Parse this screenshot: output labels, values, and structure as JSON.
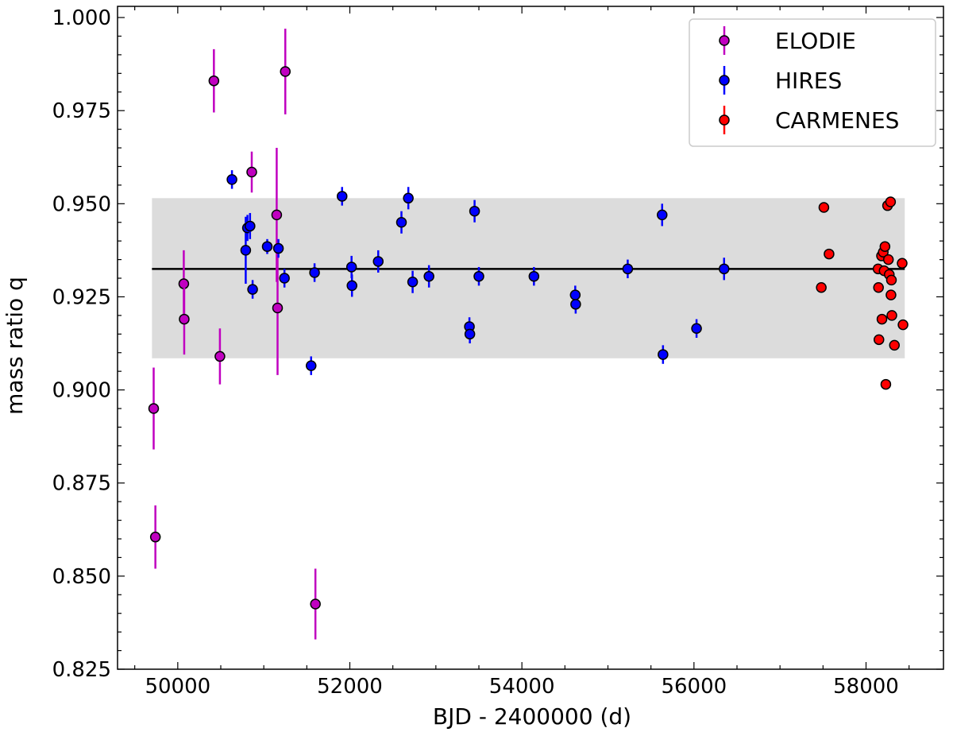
{
  "chart_data": {
    "type": "scatter",
    "xlabel": "BJD - 2400000 (d)",
    "ylabel": "mass ratio q",
    "xlim": [
      49300,
      58900
    ],
    "ylim": [
      0.825,
      1.003
    ],
    "x_ticks": [
      50000,
      52000,
      54000,
      56000,
      58000
    ],
    "y_ticks": [
      0.825,
      0.85,
      0.875,
      0.9,
      0.925,
      0.95,
      0.975,
      1.0
    ],
    "x_tick_labels": [
      "50000",
      "52000",
      "54000",
      "56000",
      "58000"
    ],
    "y_tick_labels": [
      "0.825",
      "0.850",
      "0.875",
      "0.900",
      "0.925",
      "0.950",
      "0.975",
      "1.000"
    ],
    "grid": false,
    "legend_position": "top-right",
    "mean_line": {
      "y": 0.9325,
      "x_range": [
        49700,
        58450
      ]
    },
    "band": {
      "y_range": [
        0.9085,
        0.9515
      ],
      "x_range": [
        49700,
        58450
      ]
    },
    "series": [
      {
        "name": "ELODIE",
        "color": "#c000c0",
        "points": [
          {
            "x": 49720,
            "y": 0.895,
            "err": 0.011
          },
          {
            "x": 49740,
            "y": 0.8605,
            "err": 0.0085
          },
          {
            "x": 50070,
            "y": 0.9285,
            "err": 0.009
          },
          {
            "x": 50075,
            "y": 0.919,
            "err": 0.0095
          },
          {
            "x": 50420,
            "y": 0.983,
            "err": 0.0085
          },
          {
            "x": 50490,
            "y": 0.909,
            "err": 0.0075
          },
          {
            "x": 50860,
            "y": 0.9585,
            "err": 0.0055
          },
          {
            "x": 51150,
            "y": 0.947,
            "err": 0.018
          },
          {
            "x": 51160,
            "y": 0.922,
            "err": 0.018
          },
          {
            "x": 51250,
            "y": 0.9855,
            "err": 0.0115
          },
          {
            "x": 51600,
            "y": 0.8425,
            "err": 0.0095
          }
        ]
      },
      {
        "name": "HIRES",
        "color": "#0000ff",
        "points": [
          {
            "x": 50630,
            "y": 0.9565,
            "err": 0.0025
          },
          {
            "x": 50790,
            "y": 0.9375,
            "err": 0.009
          },
          {
            "x": 50810,
            "y": 0.9435,
            "err": 0.0035
          },
          {
            "x": 50840,
            "y": 0.944,
            "err": 0.0035
          },
          {
            "x": 50870,
            "y": 0.927,
            "err": 0.0025
          },
          {
            "x": 51040,
            "y": 0.9385,
            "err": 0.002
          },
          {
            "x": 51170,
            "y": 0.938,
            "err": 0.0025
          },
          {
            "x": 51240,
            "y": 0.93,
            "err": 0.0025
          },
          {
            "x": 51550,
            "y": 0.9065,
            "err": 0.0025
          },
          {
            "x": 51590,
            "y": 0.9315,
            "err": 0.0025
          },
          {
            "x": 51910,
            "y": 0.952,
            "err": 0.0025
          },
          {
            "x": 52020,
            "y": 0.933,
            "err": 0.003
          },
          {
            "x": 52025,
            "y": 0.928,
            "err": 0.003
          },
          {
            "x": 52330,
            "y": 0.9345,
            "err": 0.003
          },
          {
            "x": 52600,
            "y": 0.945,
            "err": 0.003
          },
          {
            "x": 52680,
            "y": 0.9515,
            "err": 0.003
          },
          {
            "x": 52730,
            "y": 0.929,
            "err": 0.003
          },
          {
            "x": 52920,
            "y": 0.9305,
            "err": 0.003
          },
          {
            "x": 53390,
            "y": 0.917,
            "err": 0.0025
          },
          {
            "x": 53395,
            "y": 0.915,
            "err": 0.0025
          },
          {
            "x": 53450,
            "y": 0.948,
            "err": 0.003
          },
          {
            "x": 53500,
            "y": 0.9305,
            "err": 0.0025
          },
          {
            "x": 54140,
            "y": 0.9305,
            "err": 0.0025
          },
          {
            "x": 54620,
            "y": 0.9255,
            "err": 0.0025
          },
          {
            "x": 54625,
            "y": 0.923,
            "err": 0.0025
          },
          {
            "x": 55230,
            "y": 0.9325,
            "err": 0.0025
          },
          {
            "x": 55630,
            "y": 0.947,
            "err": 0.003
          },
          {
            "x": 55640,
            "y": 0.9095,
            "err": 0.0025
          },
          {
            "x": 56030,
            "y": 0.9165,
            "err": 0.0025
          },
          {
            "x": 56350,
            "y": 0.9325,
            "err": 0.003
          }
        ]
      },
      {
        "name": "CARMENES",
        "color": "#ff0000",
        "points": [
          {
            "x": 57480,
            "y": 0.9275,
            "err": 0
          },
          {
            "x": 57510,
            "y": 0.949,
            "err": 0
          },
          {
            "x": 57570,
            "y": 0.9365,
            "err": 0
          },
          {
            "x": 58140,
            "y": 0.9325,
            "err": 0
          },
          {
            "x": 58145,
            "y": 0.9275,
            "err": 0
          },
          {
            "x": 58150,
            "y": 0.9135,
            "err": 0
          },
          {
            "x": 58180,
            "y": 0.936,
            "err": 0
          },
          {
            "x": 58185,
            "y": 0.919,
            "err": 0
          },
          {
            "x": 58200,
            "y": 0.937,
            "err": 0
          },
          {
            "x": 58210,
            "y": 0.932,
            "err": 0
          },
          {
            "x": 58220,
            "y": 0.9385,
            "err": 0
          },
          {
            "x": 58230,
            "y": 0.9015,
            "err": 0
          },
          {
            "x": 58250,
            "y": 0.9495,
            "err": 0
          },
          {
            "x": 58260,
            "y": 0.935,
            "err": 0
          },
          {
            "x": 58270,
            "y": 0.931,
            "err": 0
          },
          {
            "x": 58285,
            "y": 0.9505,
            "err": 0
          },
          {
            "x": 58290,
            "y": 0.9255,
            "err": 0
          },
          {
            "x": 58295,
            "y": 0.9295,
            "err": 0
          },
          {
            "x": 58300,
            "y": 0.92,
            "err": 0
          },
          {
            "x": 58330,
            "y": 0.912,
            "err": 0
          },
          {
            "x": 58420,
            "y": 0.934,
            "err": 0
          },
          {
            "x": 58430,
            "y": 0.9175,
            "err": 0
          }
        ]
      }
    ]
  }
}
